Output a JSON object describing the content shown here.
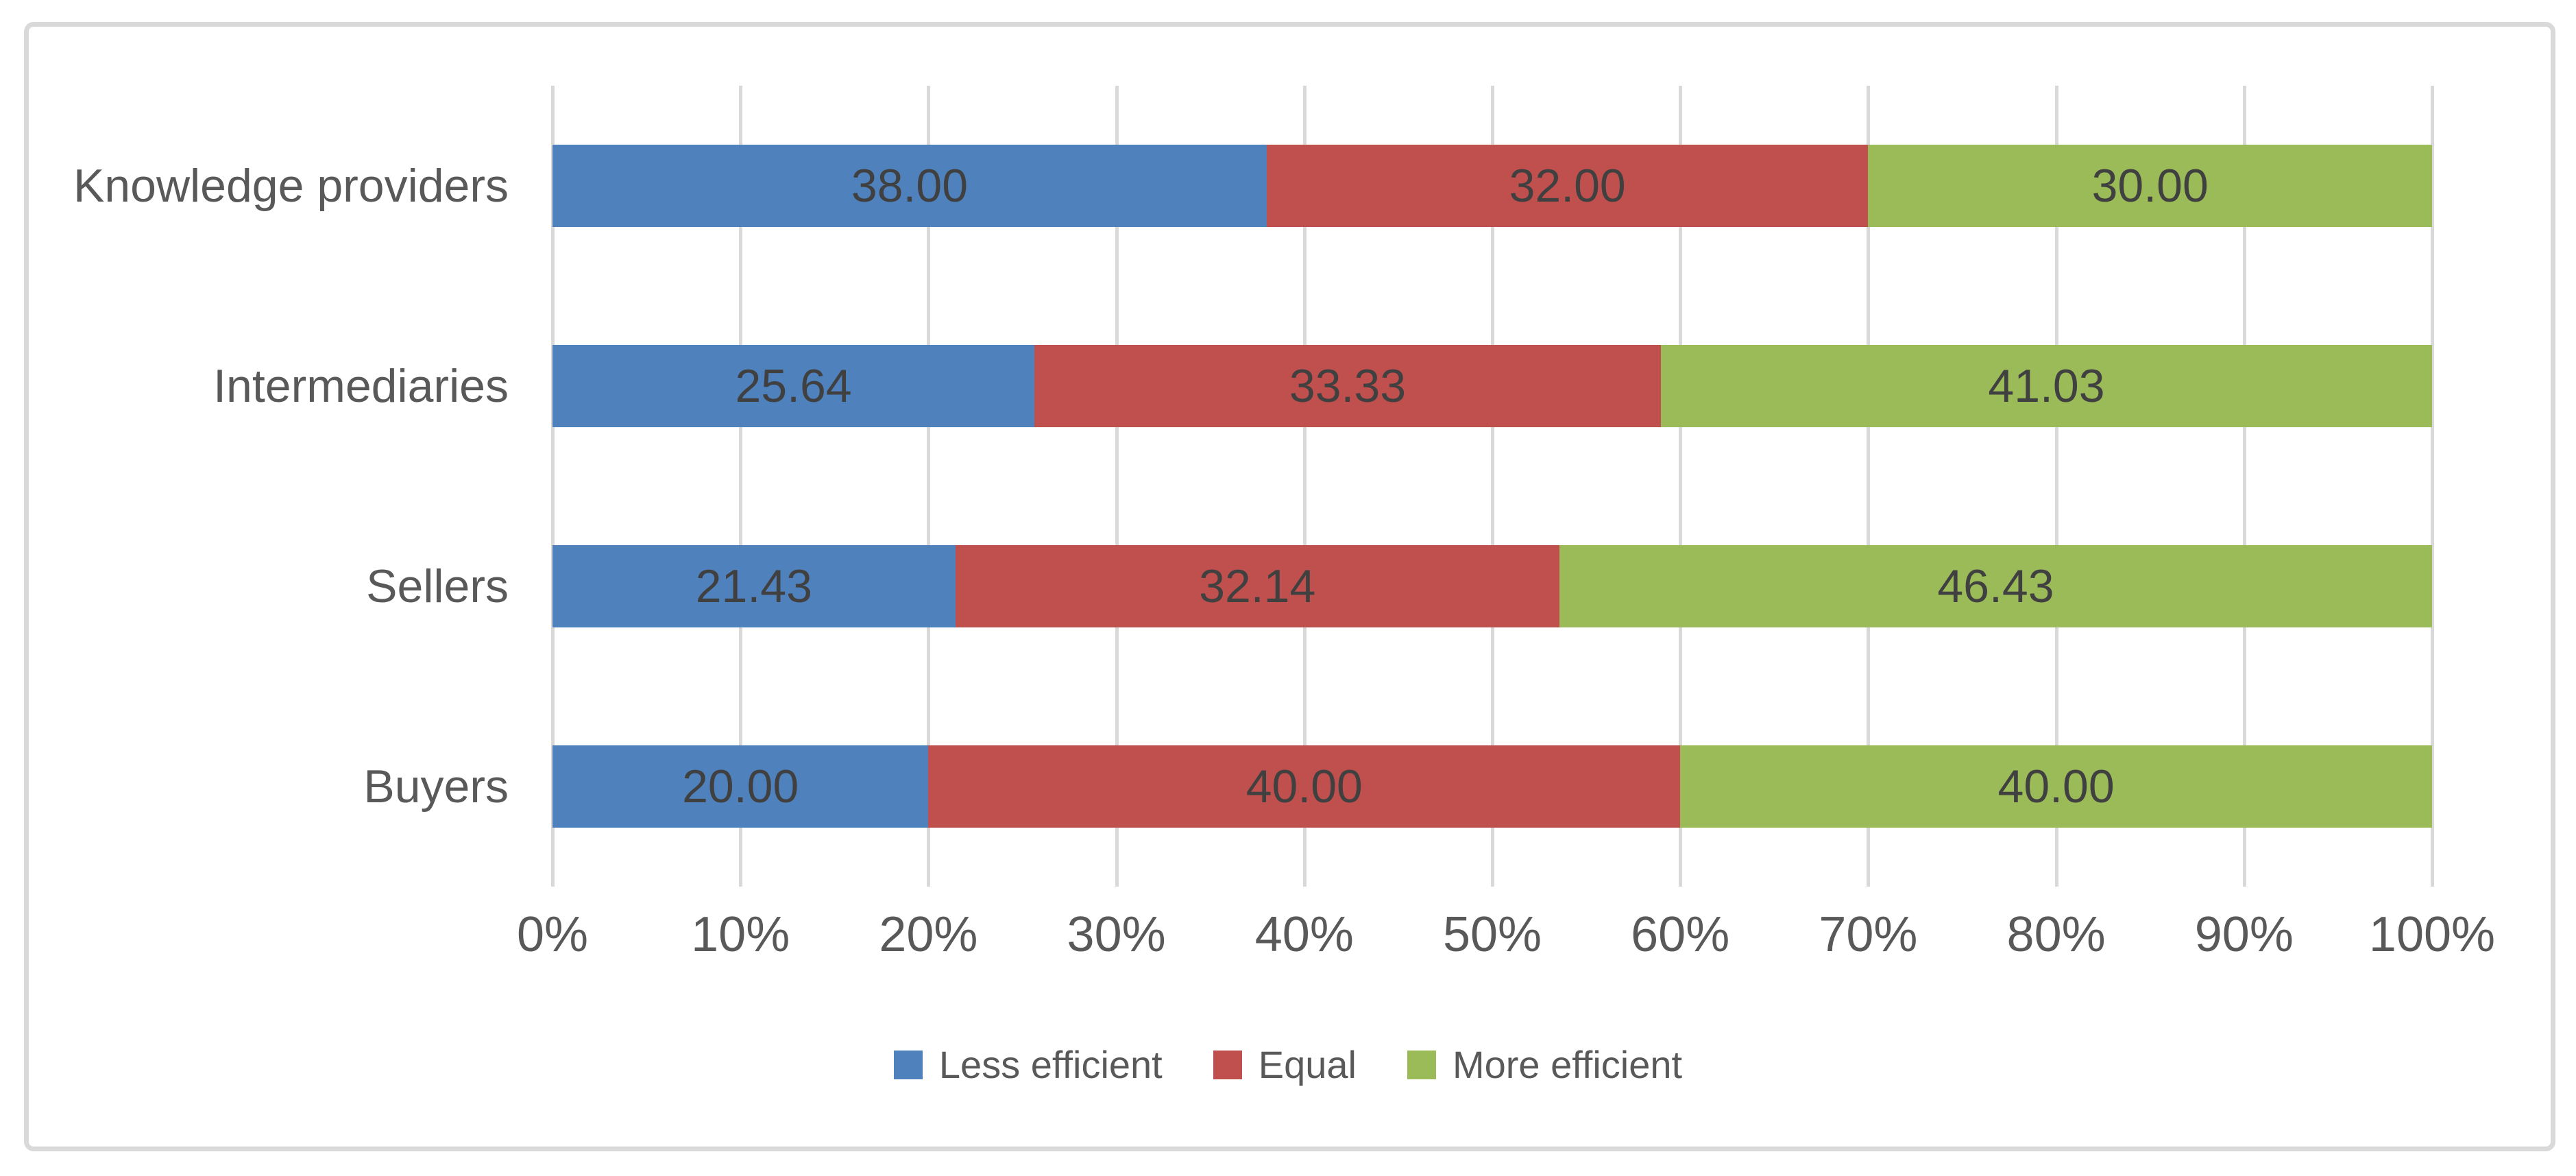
{
  "chart_data": {
    "type": "bar",
    "orientation": "horizontal",
    "stacked": true,
    "title": "",
    "categories": [
      "Knowledge providers",
      "Intermediaries",
      "Sellers",
      "Buyers"
    ],
    "series": [
      {
        "name": "Less efficient",
        "color": "#4F81BD",
        "values": [
          38.0,
          25.64,
          21.43,
          20.0
        ],
        "labels": [
          "38.00",
          "25.64",
          "21.43",
          "20.00"
        ]
      },
      {
        "name": "Equal",
        "color": "#C0504D",
        "values": [
          32.0,
          33.33,
          32.14,
          40.0
        ],
        "labels": [
          "32.00",
          "33.33",
          "32.14",
          "40.00"
        ]
      },
      {
        "name": "More efficient",
        "color": "#9BBB59",
        "values": [
          30.0,
          41.03,
          46.43,
          40.0
        ],
        "labels": [
          "30.00",
          "41.03",
          "46.43",
          "40.00"
        ]
      }
    ],
    "x_axis": {
      "min": 0,
      "max": 100,
      "tick_step": 10,
      "ticks": [
        "0%",
        "10%",
        "20%",
        "30%",
        "40%",
        "50%",
        "60%",
        "70%",
        "80%",
        "90%",
        "100%"
      ],
      "grid": true
    },
    "legend": {
      "position": "bottom",
      "entries": [
        "Less efficient",
        "Equal",
        "More efficient"
      ]
    },
    "colors": {
      "grid": "#D9D9D9",
      "frame_border": "#D9D9D9",
      "axis_text": "#595959",
      "data_label_text": "#404040",
      "background": "#FFFFFF"
    }
  }
}
